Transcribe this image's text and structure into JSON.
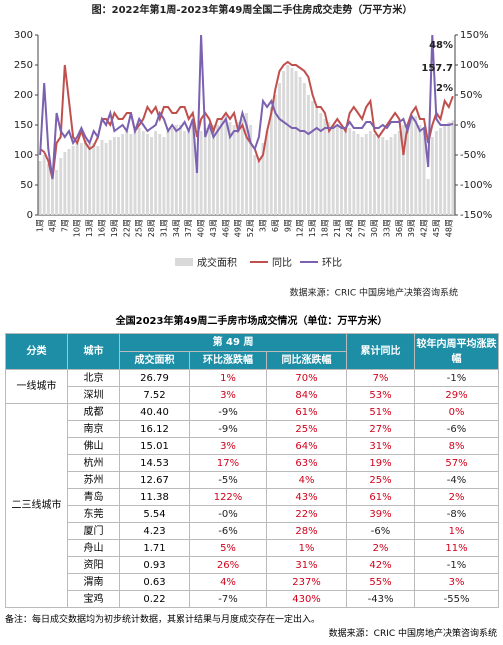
{
  "chart_data": {
    "type": "bar-line",
    "title": "图：2022年第1周-2023年第49周全国二手住房成交走势（万平方米）",
    "source": "数据来源：CRIC 中国房地产决策咨询系统",
    "categories": [
      "1周",
      null,
      null,
      "4周",
      null,
      null,
      "7周",
      null,
      null,
      "10周",
      null,
      null,
      "13周",
      null,
      null,
      "16周",
      null,
      null,
      "19周",
      null,
      null,
      "22周",
      null,
      null,
      "25周",
      null,
      null,
      "28周",
      null,
      null,
      "31周",
      null,
      null,
      "34周",
      null,
      null,
      "37周",
      null,
      null,
      "40周",
      null,
      null,
      "43周",
      null,
      null,
      "46周",
      null,
      null,
      "49周",
      null,
      null,
      "52周",
      null,
      null,
      "3周",
      null,
      null,
      "6周",
      null,
      null,
      "9周",
      null,
      null,
      "12周",
      null,
      null,
      "15周",
      null,
      null,
      "18周",
      null,
      null,
      "21周",
      null,
      null,
      "24周",
      null,
      null,
      "27周",
      null,
      null,
      "30周",
      null,
      null,
      "33周",
      null,
      null,
      "36周",
      null,
      null,
      "39周",
      null,
      null,
      "42周",
      null,
      null,
      "45周",
      null,
      null,
      "48周",
      null
    ],
    "ylim": [
      0,
      300
    ],
    "yticks": [
      0,
      50,
      100,
      150,
      200,
      250,
      300
    ],
    "y2lim": [
      -150,
      150
    ],
    "y2ticks": [
      {
        "value": -150,
        "label": "-150%"
      },
      {
        "value": -100,
        "label": "-100%"
      },
      {
        "value": -50,
        "label": "-50%"
      },
      {
        "value": 0,
        "label": "0%"
      },
      {
        "value": 50,
        "label": "50%"
      },
      {
        "value": 100,
        "label": "100%"
      },
      {
        "value": 150,
        "label": "150%"
      }
    ],
    "series": [
      {
        "name": "成交面积",
        "type": "bar",
        "color": "#d9d9d9",
        "values": [
          90,
          100,
          85,
          60,
          75,
          95,
          105,
          110,
          115,
          120,
          120,
          125,
          118,
          120,
          115,
          125,
          120,
          125,
          130,
          130,
          135,
          140,
          135,
          140,
          145,
          140,
          135,
          130,
          140,
          135,
          130,
          140,
          145,
          150,
          150,
          140,
          145,
          150,
          95,
          140,
          145,
          150,
          150,
          150,
          160,
          170,
          155,
          150,
          155,
          160,
          170,
          150,
          100,
          90,
          120,
          140,
          180,
          200,
          220,
          240,
          250,
          245,
          240,
          230,
          220,
          200,
          190,
          180,
          170,
          160,
          155,
          150,
          150,
          145,
          140,
          145,
          140,
          135,
          130,
          135,
          140,
          135,
          130,
          130,
          125,
          130,
          135,
          140,
          150,
          140,
          160,
          165,
          150,
          140,
          60,
          130,
          140,
          145,
          150,
          155,
          157.7
        ],
        "value_labels": [
          null,
          null,
          null,
          null,
          null,
          null,
          null,
          null,
          null,
          null,
          null,
          null,
          null,
          null,
          null,
          null,
          null,
          null,
          null,
          null,
          null,
          null,
          null,
          null,
          null,
          null,
          null,
          null,
          null,
          null,
          null,
          null,
          null,
          null,
          null,
          null,
          null,
          null,
          null,
          null,
          null,
          null,
          null,
          null,
          null,
          null,
          null,
          null,
          null,
          null,
          null,
          null,
          null,
          null,
          null,
          null,
          null,
          null,
          null,
          null,
          null,
          null,
          null,
          null,
          null,
          null,
          null,
          null,
          null,
          null,
          null,
          null,
          null,
          null,
          null,
          null,
          null,
          null,
          null,
          null,
          null,
          null,
          null,
          null,
          null,
          null,
          null,
          null,
          null,
          null,
          null,
          null,
          null,
          null,
          null,
          null,
          null,
          null,
          null,
          null,
          "157.7"
        ]
      },
      {
        "name": "同比",
        "type": "line",
        "axis": "y2",
        "color": "#c0504d",
        "values": [
          -40,
          -45,
          -60,
          -90,
          -30,
          -20,
          100,
          40,
          -20,
          -30,
          -10,
          -30,
          -40,
          -35,
          -20,
          10,
          10,
          0,
          20,
          10,
          10,
          20,
          20,
          -10,
          0,
          10,
          30,
          20,
          30,
          10,
          30,
          30,
          20,
          20,
          30,
          30,
          10,
          20,
          -20,
          10,
          20,
          10,
          -10,
          10,
          10,
          20,
          10,
          20,
          -10,
          0,
          -20,
          -30,
          -40,
          -60,
          -50,
          -10,
          20,
          60,
          90,
          100,
          105,
          100,
          100,
          95,
          90,
          80,
          50,
          30,
          30,
          20,
          -10,
          0,
          10,
          0,
          -10,
          20,
          30,
          20,
          10,
          30,
          40,
          -10,
          -20,
          -10,
          0,
          10,
          20,
          10,
          -50,
          0,
          20,
          30,
          10,
          10,
          -30,
          0,
          20,
          10,
          40,
          30,
          48
        ],
        "value_labels": [
          null,
          null,
          null,
          null,
          null,
          null,
          null,
          null,
          null,
          null,
          null,
          null,
          null,
          null,
          null,
          null,
          null,
          null,
          null,
          null,
          null,
          null,
          null,
          null,
          null,
          null,
          null,
          null,
          null,
          null,
          null,
          null,
          null,
          null,
          null,
          null,
          null,
          null,
          null,
          null,
          null,
          null,
          null,
          null,
          null,
          null,
          null,
          null,
          null,
          null,
          null,
          null,
          null,
          null,
          null,
          null,
          null,
          null,
          null,
          null,
          null,
          null,
          null,
          null,
          null,
          null,
          null,
          null,
          null,
          null,
          null,
          null,
          null,
          null,
          null,
          null,
          null,
          null,
          null,
          null,
          null,
          null,
          null,
          null,
          null,
          null,
          null,
          null,
          null,
          null,
          null,
          null,
          null,
          null,
          null,
          null,
          null,
          null,
          null,
          null,
          "48%"
        ]
      },
      {
        "name": "环比",
        "type": "line",
        "axis": "y2",
        "color": "#7b61b0",
        "values": [
          -50,
          70,
          -40,
          -90,
          20,
          -10,
          -20,
          -10,
          -30,
          -20,
          -5,
          -20,
          -30,
          -10,
          -20,
          10,
          0,
          20,
          -10,
          -5,
          0,
          -10,
          20,
          -10,
          10,
          0,
          -10,
          -5,
          0,
          20,
          10,
          -10,
          0,
          -10,
          -5,
          5,
          -10,
          10,
          -80,
          150,
          -20,
          0,
          -20,
          -10,
          0,
          10,
          -20,
          -10,
          -10,
          20,
          0,
          -30,
          -40,
          -20,
          40,
          30,
          40,
          20,
          10,
          5,
          0,
          -5,
          -5,
          -10,
          -10,
          -15,
          -10,
          -5,
          -10,
          -5,
          -5,
          -5,
          0,
          -5,
          -5,
          5,
          -5,
          -5,
          -5,
          5,
          5,
          -5,
          -5,
          0,
          -5,
          5,
          5,
          5,
          10,
          -10,
          15,
          5,
          -10,
          -5,
          -70,
          150,
          10,
          0,
          0,
          0,
          2
        ],
        "value_labels": [
          null,
          null,
          null,
          null,
          null,
          null,
          null,
          null,
          null,
          null,
          null,
          null,
          null,
          null,
          null,
          null,
          null,
          null,
          null,
          null,
          null,
          null,
          null,
          null,
          null,
          null,
          null,
          null,
          null,
          null,
          null,
          null,
          null,
          null,
          null,
          null,
          null,
          null,
          null,
          null,
          null,
          null,
          null,
          null,
          null,
          null,
          null,
          null,
          null,
          null,
          null,
          null,
          null,
          null,
          null,
          null,
          null,
          null,
          null,
          null,
          null,
          null,
          null,
          null,
          null,
          null,
          null,
          null,
          null,
          null,
          null,
          null,
          null,
          null,
          null,
          null,
          null,
          null,
          null,
          null,
          null,
          null,
          null,
          null,
          null,
          null,
          null,
          null,
          null,
          null,
          null,
          null,
          null,
          null,
          null,
          null,
          null,
          null,
          null,
          null,
          "2%"
        ]
      }
    ]
  },
  "table": {
    "title": "全国2023年第49周二手房市场成交情况（单位：万平方米）",
    "header_group": "第 49 周",
    "columns": [
      "分类",
      "城市",
      "成交面积",
      "环比涨跌幅",
      "同比涨跌幅",
      "累计同比",
      "较年内周平均涨跌幅"
    ],
    "groups": [
      {
        "name": "一线城市",
        "rows": [
          [
            "北京",
            "26.79",
            "1%",
            "70%",
            "7%",
            "-1%"
          ],
          [
            "深圳",
            "7.52",
            "3%",
            "84%",
            "53%",
            "29%"
          ]
        ]
      },
      {
        "name": "二三线城市",
        "rows": [
          [
            "成都",
            "40.40",
            "-9%",
            "61%",
            "51%",
            "0%"
          ],
          [
            "南京",
            "16.12",
            "-9%",
            "25%",
            "27%",
            "-6%"
          ],
          [
            "佛山",
            "15.01",
            "3%",
            "64%",
            "31%",
            "8%"
          ],
          [
            "杭州",
            "14.53",
            "17%",
            "63%",
            "19%",
            "57%"
          ],
          [
            "苏州",
            "12.67",
            "-5%",
            "4%",
            "25%",
            "-4%"
          ],
          [
            "青岛",
            "11.38",
            "122%",
            "43%",
            "61%",
            "2%"
          ],
          [
            "东莞",
            "5.54",
            "-0%",
            "22%",
            "39%",
            "-8%"
          ],
          [
            "厦门",
            "4.23",
            "-6%",
            "28%",
            "-6%",
            "1%"
          ],
          [
            "舟山",
            "1.71",
            "5%",
            "1%",
            "2%",
            "11%"
          ],
          [
            "资阳",
            "0.93",
            "26%",
            "31%",
            "42%",
            "-1%"
          ],
          [
            "渭南",
            "0.63",
            "4%",
            "237%",
            "55%",
            "3%"
          ],
          [
            "宝鸡",
            "0.22",
            "-7%",
            "430%",
            "-43%",
            "-55%"
          ]
        ]
      }
    ],
    "note": "备注：每日成交数据均为初步统计数据，其累计结果与月度成交存在一定出入。",
    "source": "数据来源：CRIC 中国房地产决策咨询系统"
  }
}
